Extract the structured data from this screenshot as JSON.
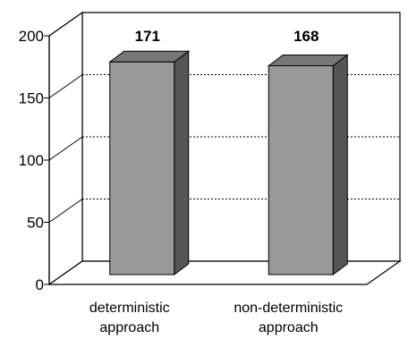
{
  "chart_data": {
    "type": "bar",
    "style": "3d-column",
    "categories": [
      [
        "deterministic",
        "approach"
      ],
      [
        "non-deterministic",
        "approach"
      ]
    ],
    "values": [
      171,
      168
    ],
    "data_labels": [
      "171",
      "168"
    ],
    "ylim": [
      0,
      200
    ],
    "yticks": [
      "0",
      "50",
      "100",
      "150",
      "200"
    ],
    "grid": true,
    "legend": "none",
    "colors": {
      "bar_front": "#999999",
      "bar_top": "#777777",
      "bar_side": "#555555",
      "wall": "#ffffff",
      "line": "#000000"
    }
  }
}
